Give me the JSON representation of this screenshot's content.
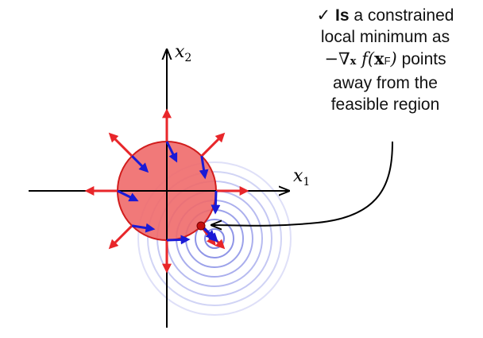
{
  "axes": {
    "x1_label": "x1",
    "x2_label": "x2"
  },
  "callout": {
    "check": "✓",
    "line1_bold": "Is",
    "line1_rest": " a constrained",
    "line2": "local minimum as",
    "line3_nabla": "−∇",
    "line3_sub": "x",
    "line3_f": " f(",
    "line3_xf": "x",
    "line3_xf_sub": "F",
    "line3_close": ")",
    "line3_rest": " points",
    "line4": "away from the",
    "line5": "feasible region"
  },
  "colors": {
    "feasible_fill": "#f06a6a",
    "feasible_stroke": "#d11d1d",
    "constraint_gradient": "#e8262a",
    "objective_gradient": "#1a1ad6",
    "contours": "#6c74e0",
    "point": "#c41010"
  }
}
